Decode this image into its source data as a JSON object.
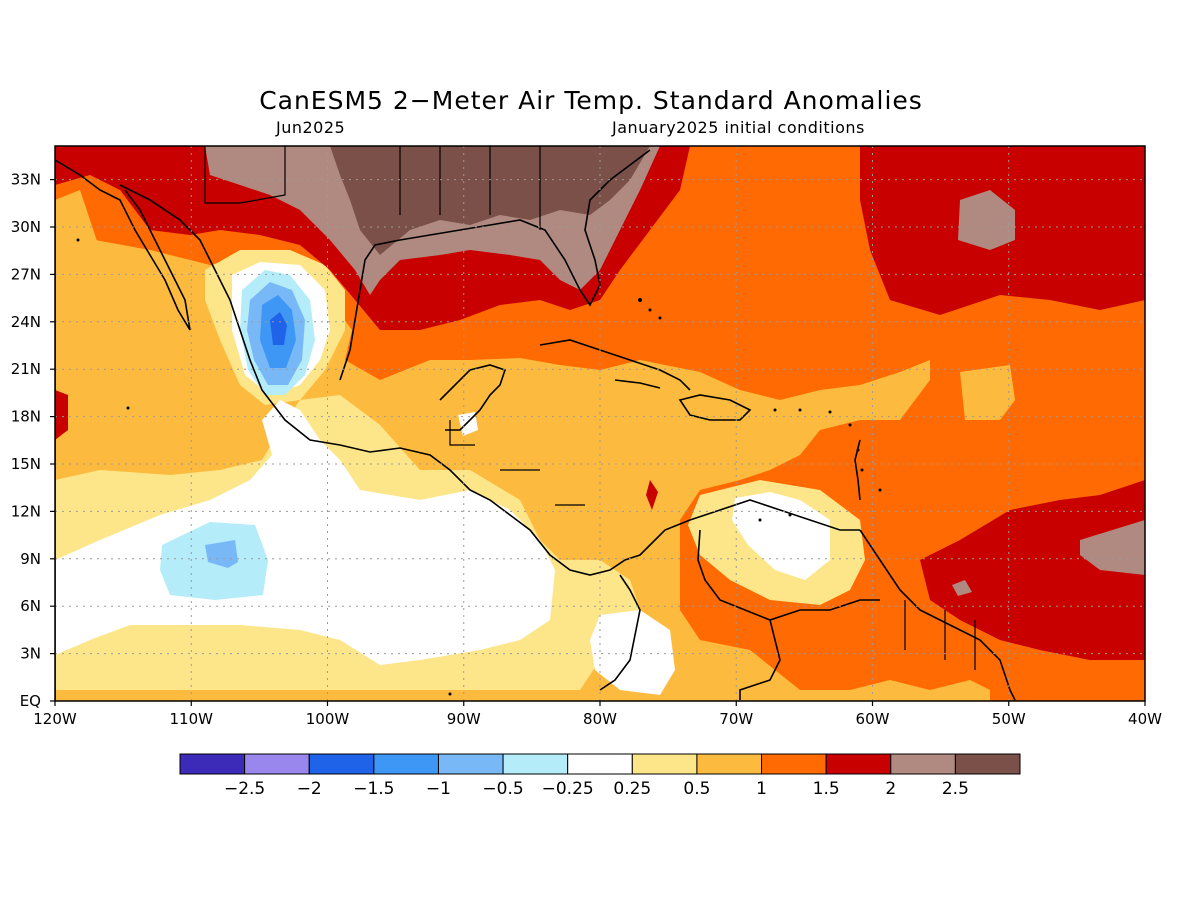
{
  "title": "CanESM5 2−Meter Air Temp. Standard Anomalies",
  "subtitle_left": "Jun2025",
  "subtitle_right": "January2025 initial conditions",
  "map": {
    "lat_labels": [
      "33N",
      "30N",
      "27N",
      "24N",
      "21N",
      "18N",
      "15N",
      "12N",
      "9N",
      "6N",
      "3N",
      "EQ"
    ],
    "lon_labels": [
      "120W",
      "110W",
      "100W",
      "90W",
      "80W",
      "70W",
      "60W",
      "50W",
      "40W"
    ]
  },
  "colorbar": {
    "colors": [
      "#3c2ab8",
      "#9a87ee",
      "#1f64e8",
      "#3e97f5",
      "#78b8f7",
      "#b4ecfa",
      "#ffffff",
      "#fde68a",
      "#fcbb3f",
      "#ff6a02",
      "#c80000",
      "#b08a80",
      "#7a5048"
    ],
    "labels": [
      "−2.5",
      "−2",
      "−1.5",
      "−1",
      "−0.5",
      "−0.25",
      "0.25",
      "0.5",
      "1",
      "1.5",
      "2",
      "2.5"
    ]
  }
}
